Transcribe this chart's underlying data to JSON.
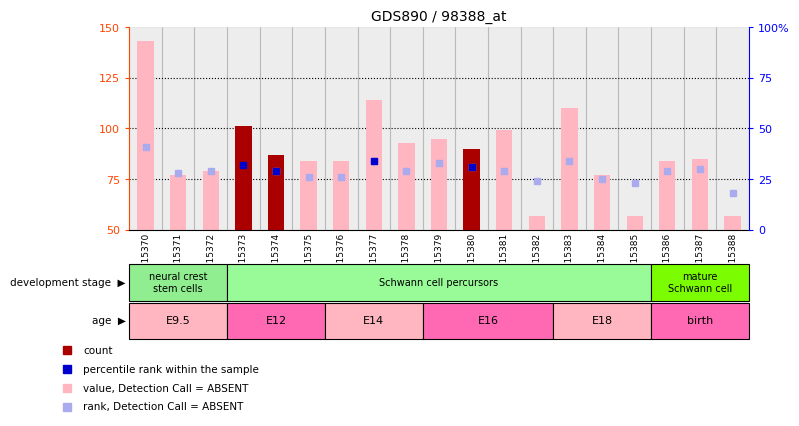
{
  "title": "GDS890 / 98388_at",
  "samples": [
    "GSM15370",
    "GSM15371",
    "GSM15372",
    "GSM15373",
    "GSM15374",
    "GSM15375",
    "GSM15376",
    "GSM15377",
    "GSM15378",
    "GSM15379",
    "GSM15380",
    "GSM15381",
    "GSM15382",
    "GSM15383",
    "GSM15384",
    "GSM15385",
    "GSM15386",
    "GSM15387",
    "GSM15388"
  ],
  "pink_bar_heights": [
    143,
    77,
    79,
    101,
    87,
    84,
    84,
    114,
    93,
    95,
    90,
    99,
    57,
    110,
    77,
    57,
    84,
    85,
    57
  ],
  "dark_red_bars": {
    "GSM15373": 101,
    "GSM15374": 87,
    "GSM15380": 90
  },
  "blue_squares": {
    "GSM15373": 82,
    "GSM15374": 79,
    "GSM15380": 81,
    "GSM15377": 84
  },
  "light_blue_squares": {
    "GSM15370": 91,
    "GSM15371": 78,
    "GSM15372": 79,
    "GSM15374": 79,
    "GSM15375": 76,
    "GSM15376": 76,
    "GSM15377": 84,
    "GSM15378": 79,
    "GSM15379": 83,
    "GSM15380": 81,
    "GSM15381": 79,
    "GSM15382": 74,
    "GSM15383": 84,
    "GSM15384": 75,
    "GSM15385": 73,
    "GSM15386": 79,
    "GSM15387": 80,
    "GSM15388": 68
  },
  "ylim": [
    50,
    150
  ],
  "yticks_left": [
    50,
    75,
    100,
    125,
    150
  ],
  "grid_lines": [
    75,
    100,
    125
  ],
  "dev_stages": [
    {
      "label": "neural crest\nstem cells",
      "start": 0,
      "end": 3,
      "color": "#90EE90"
    },
    {
      "label": "Schwann cell percursors",
      "start": 3,
      "end": 16,
      "color": "#98FB98"
    },
    {
      "label": "mature\nSchwann cell",
      "start": 16,
      "end": 19,
      "color": "#7CFC00"
    }
  ],
  "age_stages": [
    {
      "label": "E9.5",
      "start": 0,
      "end": 3,
      "color": "#FFB6C1"
    },
    {
      "label": "E12",
      "start": 3,
      "end": 6,
      "color": "#FF69B4"
    },
    {
      "label": "E14",
      "start": 6,
      "end": 9,
      "color": "#FFB6C1"
    },
    {
      "label": "E16",
      "start": 9,
      "end": 13,
      "color": "#FF69B4"
    },
    {
      "label": "E18",
      "start": 13,
      "end": 16,
      "color": "#FFB6C1"
    },
    {
      "label": "birth",
      "start": 16,
      "end": 19,
      "color": "#FF69B4"
    }
  ],
  "bar_width": 0.5,
  "pink_color": "#FFB6C1",
  "dark_red_color": "#AA0000",
  "blue_color": "#0000CC",
  "light_blue_color": "#AAAAEE",
  "left_axis_color": "#FF4500",
  "right_axis_color": "#0000FF",
  "col_bg_color": "#DCDCDC",
  "col_border_color": "#AAAAAA"
}
